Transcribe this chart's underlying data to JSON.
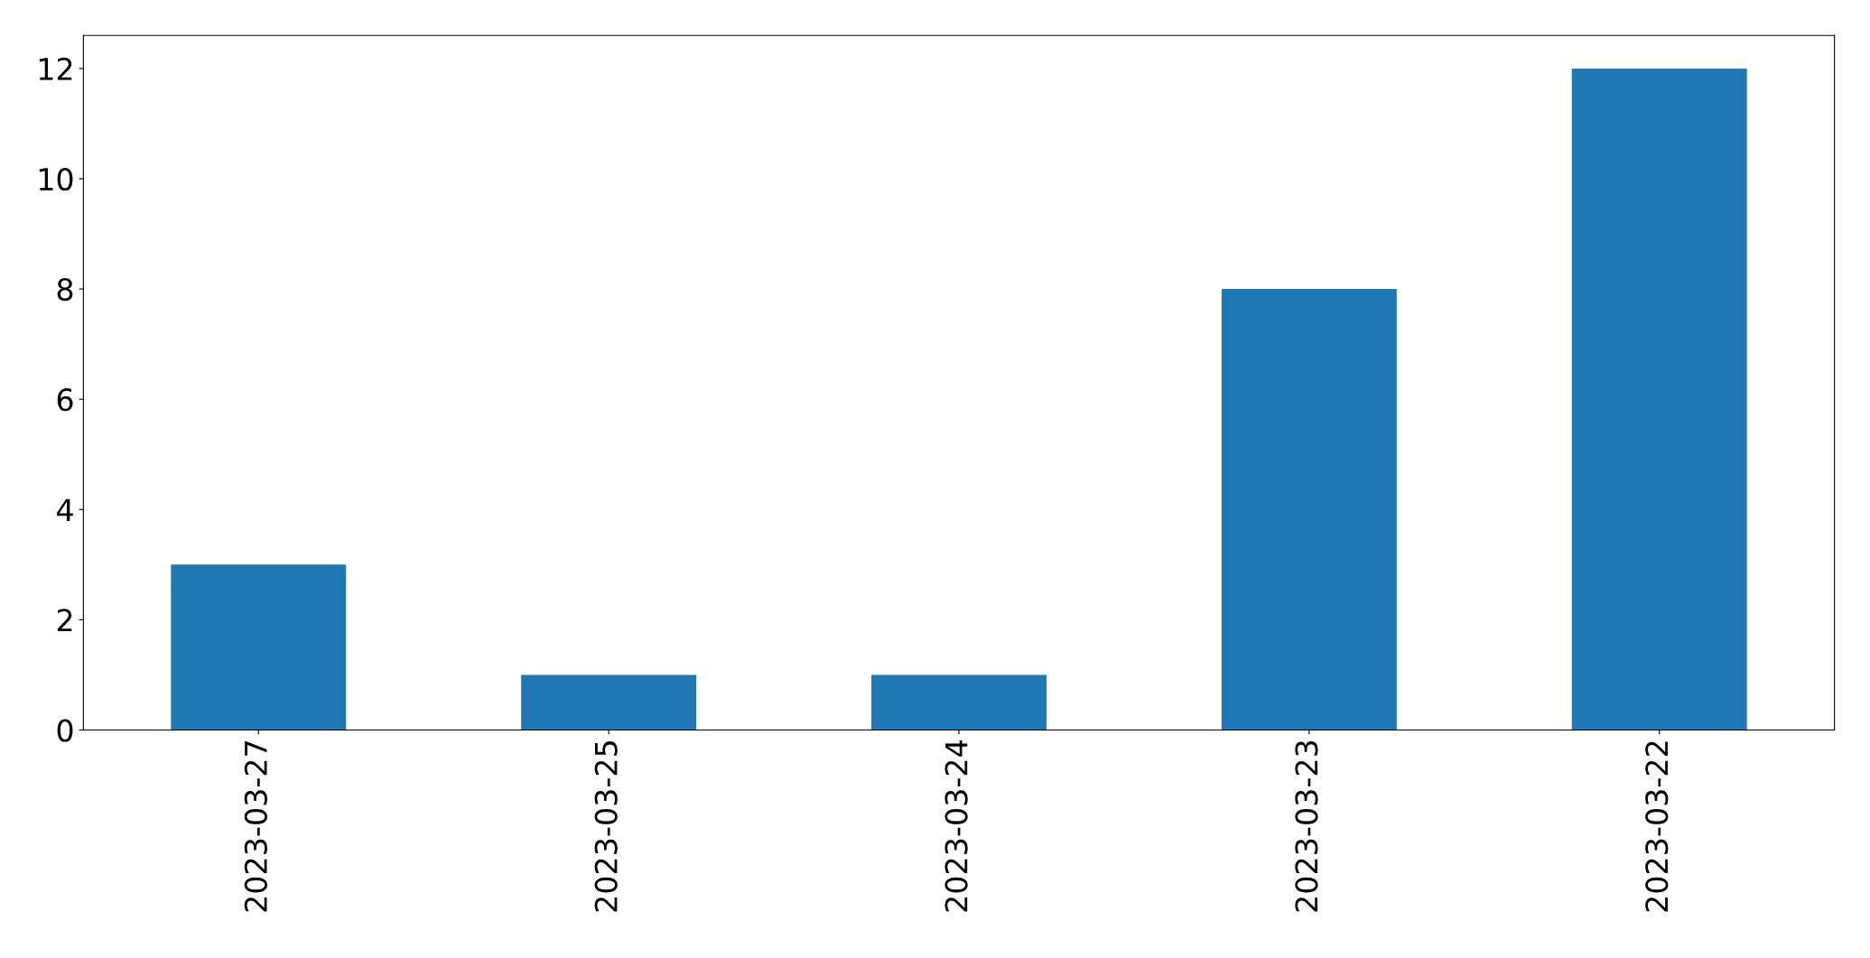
{
  "chart_data": {
    "type": "bar",
    "categories": [
      "2023-03-27",
      "2023-03-25",
      "2023-03-24",
      "2023-03-23",
      "2023-03-22"
    ],
    "values": [
      3,
      1,
      1,
      8,
      12
    ],
    "color": "#1f77b4",
    "ylim": [
      0,
      12.6
    ],
    "yticks": [
      0,
      2,
      4,
      6,
      8,
      10,
      12
    ],
    "grid": false
  }
}
